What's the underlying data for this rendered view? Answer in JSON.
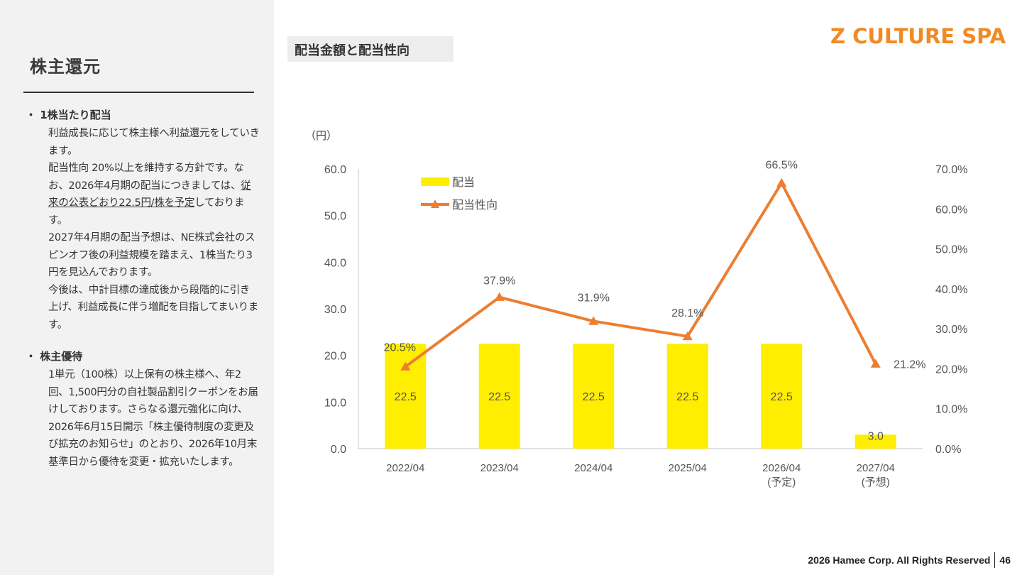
{
  "sidebar": {
    "title": "株主還元",
    "sections": [
      {
        "heading": "・ 1株当たり配当",
        "paragraphs": [
          [
            "利益成長に応じて株主様へ利益還元をしていきます。"
          ],
          [
            "配当性向 20%以上を維持する方針です。なお、2026年4月期の配当につきましては、",
            "従来の公表どおり22.5円/株を予定",
            "しております。"
          ],
          [
            "2027年4月期の配当予想は、NE株式会社のスピンオフ後の利益規模を踏まえ、1株当たり3円を見込んでおります。"
          ],
          [
            "今後は、中計目標の達成後から段階的に引き上げ、利益成長に伴う増配を目指してまいります。"
          ]
        ]
      },
      {
        "heading": "・ 株主優待",
        "paragraphs": [
          [
            "1単元（100株）以上保有の株主様へ、年2回、1,500円分の自社製品割引クーポンをお届けしております。さらなる還元強化に向け、2026年6月15日開示「株主優待制度の変更及び拡充のお知らせ」のとおり、2026年10月末基準日から優待を変更・拡充いたします。"
          ]
        ]
      }
    ]
  },
  "chart_tag": "配当金額と配当性向",
  "logo": "Z CULTURE SPA",
  "footer": {
    "copyright": "2026 Hamee Corp. All Rights Reserved",
    "page": "46"
  },
  "colors": {
    "bar": "#ffee00",
    "line": "#ed7d31",
    "axis": "#d9d9d9"
  },
  "chart_data": {
    "type": "bar+line",
    "y_unit": "（円）",
    "categories": [
      [
        "2022/04"
      ],
      [
        "2023/04"
      ],
      [
        "2024/04"
      ],
      [
        "2025/04"
      ],
      [
        "2026/04",
        "(予定)"
      ],
      [
        "2027/04",
        "(予想)"
      ]
    ],
    "series": [
      {
        "name": "配当",
        "type": "bar",
        "axis": "left",
        "values": [
          22.5,
          22.5,
          22.5,
          22.5,
          22.5,
          3.0
        ],
        "labels": [
          "22.5",
          "22.5",
          "22.5",
          "22.5",
          "22.5",
          "3.0"
        ]
      },
      {
        "name": "配当性向",
        "type": "line",
        "axis": "right",
        "values": [
          20.5,
          37.9,
          31.9,
          28.1,
          66.5,
          21.2
        ],
        "labels": [
          "20.5%",
          "37.9%",
          "31.9%",
          "28.1%",
          "66.5%",
          "21.2%"
        ]
      }
    ],
    "y_left": {
      "min": 0,
      "max": 60,
      "ticks": [
        "0.0",
        "10.0",
        "20.0",
        "30.0",
        "40.0",
        "50.0",
        "60.0"
      ]
    },
    "y_right": {
      "min": 0,
      "max": 70,
      "ticks": [
        "0.0%",
        "10.0%",
        "20.0%",
        "30.0%",
        "40.0%",
        "50.0%",
        "60.0%",
        "70.0%"
      ]
    },
    "legend": "top-left",
    "grid": false
  }
}
